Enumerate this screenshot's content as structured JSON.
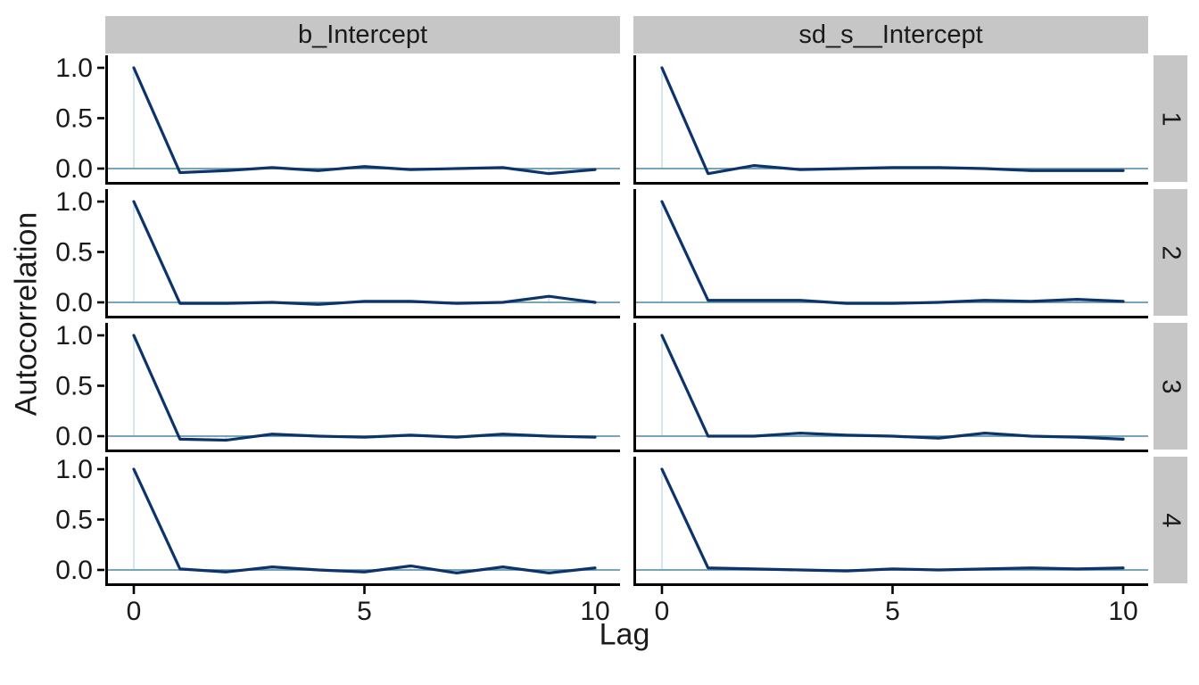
{
  "chart_data": {
    "type": "line",
    "title": "",
    "xlabel": "Lag",
    "ylabel": "Autocorrelation",
    "facet_cols": [
      "b_Intercept",
      "sd_s__Intercept"
    ],
    "facet_rows": [
      "1",
      "2",
      "3",
      "4"
    ],
    "x": [
      0,
      1,
      2,
      3,
      4,
      5,
      6,
      7,
      8,
      9,
      10
    ],
    "x_ticks": {
      "labels": [
        "0",
        "5",
        "10"
      ],
      "values": [
        0,
        5,
        10
      ]
    },
    "y_ticks": {
      "labels": [
        "1.0",
        "0.5",
        "0.0"
      ],
      "values": [
        1.0,
        0.5,
        0.0
      ]
    },
    "xlim": [
      0,
      10
    ],
    "ylim": [
      -0.13,
      1.12
    ],
    "grid": false,
    "legend": false,
    "series": [
      {
        "parameter": "b_Intercept",
        "chain": "1",
        "values": [
          1.0,
          -0.04,
          -0.02,
          0.01,
          -0.02,
          0.02,
          -0.01,
          0.0,
          0.01,
          -0.05,
          -0.01
        ]
      },
      {
        "parameter": "b_Intercept",
        "chain": "2",
        "values": [
          1.0,
          -0.01,
          -0.01,
          0.0,
          -0.02,
          0.01,
          0.01,
          -0.01,
          0.0,
          0.06,
          0.0
        ]
      },
      {
        "parameter": "b_Intercept",
        "chain": "3",
        "values": [
          1.0,
          -0.03,
          -0.04,
          0.02,
          0.0,
          -0.01,
          0.01,
          -0.01,
          0.02,
          0.0,
          -0.01
        ]
      },
      {
        "parameter": "b_Intercept",
        "chain": "4",
        "values": [
          1.0,
          0.01,
          -0.02,
          0.03,
          0.0,
          -0.02,
          0.04,
          -0.03,
          0.03,
          -0.03,
          0.02
        ]
      },
      {
        "parameter": "sd_s__Intercept",
        "chain": "1",
        "values": [
          1.0,
          -0.05,
          0.03,
          -0.01,
          0.0,
          0.01,
          0.01,
          0.0,
          -0.02,
          -0.02,
          -0.02
        ]
      },
      {
        "parameter": "sd_s__Intercept",
        "chain": "2",
        "values": [
          1.0,
          0.02,
          0.02,
          0.02,
          -0.01,
          -0.01,
          0.0,
          0.02,
          0.01,
          0.03,
          0.01
        ]
      },
      {
        "parameter": "sd_s__Intercept",
        "chain": "3",
        "values": [
          1.0,
          0.0,
          0.0,
          0.03,
          0.01,
          0.0,
          -0.02,
          0.03,
          0.0,
          -0.01,
          -0.03
        ]
      },
      {
        "parameter": "sd_s__Intercept",
        "chain": "4",
        "values": [
          1.0,
          0.02,
          0.01,
          0.0,
          -0.01,
          0.01,
          0.0,
          0.01,
          0.02,
          0.01,
          0.02
        ]
      }
    ],
    "colors": {
      "acf_line": "#0c346a",
      "zero_line": "#6497b1",
      "lag_marker_line": "#d1e1ec",
      "strip_bg": "#c6c6c6",
      "axis": "#000000",
      "text": "#1a1a1a"
    }
  }
}
